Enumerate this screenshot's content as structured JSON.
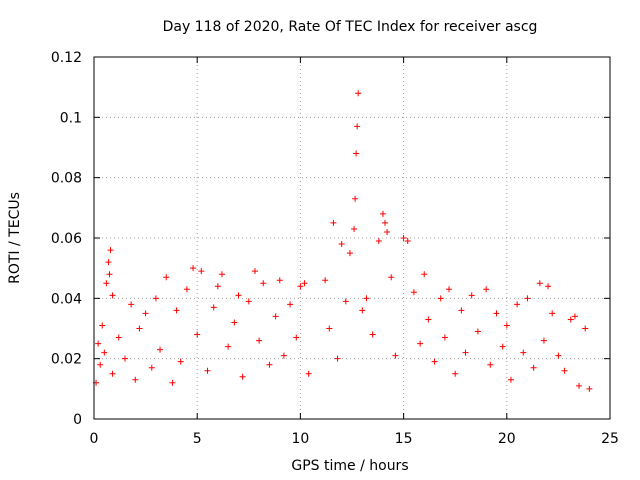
{
  "chart_data": {
    "type": "scatter",
    "title": "Day 118 of 2020, Rate Of TEC Index for receiver ascg",
    "xlabel": "GPS time / hours",
    "ylabel": "ROTI / TECUs",
    "xlim": [
      0,
      25
    ],
    "ylim": [
      0,
      0.12
    ],
    "xticks": [
      "0",
      "5",
      "10",
      "15",
      "20",
      "25"
    ],
    "yticks": [
      "0",
      "0.02",
      "0.04",
      "0.06",
      "0.08",
      "0.1",
      "0.12"
    ],
    "grid": true,
    "marker": "+",
    "color": "#ff0000",
    "series": [
      {
        "name": "ROTI",
        "points": [
          [
            0.1,
            0.012
          ],
          [
            0.2,
            0.025
          ],
          [
            0.3,
            0.018
          ],
          [
            0.4,
            0.031
          ],
          [
            0.5,
            0.022
          ],
          [
            0.6,
            0.045
          ],
          [
            0.7,
            0.052
          ],
          [
            0.75,
            0.048
          ],
          [
            0.8,
            0.056
          ],
          [
            0.9,
            0.041
          ],
          [
            0.9,
            0.015
          ],
          [
            1.2,
            0.027
          ],
          [
            1.5,
            0.02
          ],
          [
            1.8,
            0.038
          ],
          [
            2.0,
            0.013
          ],
          [
            2.2,
            0.03
          ],
          [
            2.5,
            0.035
          ],
          [
            2.8,
            0.017
          ],
          [
            3.0,
            0.04
          ],
          [
            3.2,
            0.023
          ],
          [
            3.5,
            0.047
          ],
          [
            3.8,
            0.012
          ],
          [
            4.0,
            0.036
          ],
          [
            4.2,
            0.019
          ],
          [
            4.5,
            0.043
          ],
          [
            4.8,
            0.05
          ],
          [
            5.0,
            0.028
          ],
          [
            5.2,
            0.049
          ],
          [
            5.5,
            0.016
          ],
          [
            5.8,
            0.037
          ],
          [
            6.0,
            0.044
          ],
          [
            6.2,
            0.048
          ],
          [
            6.5,
            0.024
          ],
          [
            6.8,
            0.032
          ],
          [
            7.0,
            0.041
          ],
          [
            7.2,
            0.014
          ],
          [
            7.5,
            0.039
          ],
          [
            7.8,
            0.049
          ],
          [
            8.0,
            0.026
          ],
          [
            8.2,
            0.045
          ],
          [
            8.5,
            0.018
          ],
          [
            8.8,
            0.034
          ],
          [
            9.0,
            0.046
          ],
          [
            9.2,
            0.021
          ],
          [
            9.5,
            0.038
          ],
          [
            9.8,
            0.027
          ],
          [
            10.0,
            0.044
          ],
          [
            10.2,
            0.045
          ],
          [
            10.4,
            0.015
          ],
          [
            11.2,
            0.046
          ],
          [
            11.4,
            0.03
          ],
          [
            11.6,
            0.065
          ],
          [
            11.8,
            0.02
          ],
          [
            12.0,
            0.058
          ],
          [
            12.2,
            0.039
          ],
          [
            12.4,
            0.055
          ],
          [
            12.6,
            0.063
          ],
          [
            12.65,
            0.073
          ],
          [
            12.7,
            0.088
          ],
          [
            12.75,
            0.097
          ],
          [
            12.8,
            0.108
          ],
          [
            13.0,
            0.036
          ],
          [
            13.2,
            0.04
          ],
          [
            13.5,
            0.028
          ],
          [
            13.8,
            0.059
          ],
          [
            14.0,
            0.068
          ],
          [
            14.1,
            0.065
          ],
          [
            14.2,
            0.062
          ],
          [
            14.4,
            0.047
          ],
          [
            14.6,
            0.021
          ],
          [
            15.0,
            0.06
          ],
          [
            15.2,
            0.059
          ],
          [
            15.5,
            0.042
          ],
          [
            15.8,
            0.025
          ],
          [
            16.0,
            0.048
          ],
          [
            16.2,
            0.033
          ],
          [
            16.5,
            0.019
          ],
          [
            16.8,
            0.04
          ],
          [
            17.0,
            0.027
          ],
          [
            17.2,
            0.043
          ],
          [
            17.5,
            0.015
          ],
          [
            17.8,
            0.036
          ],
          [
            18.0,
            0.022
          ],
          [
            18.3,
            0.041
          ],
          [
            18.6,
            0.029
          ],
          [
            19.0,
            0.043
          ],
          [
            19.2,
            0.018
          ],
          [
            19.5,
            0.035
          ],
          [
            19.8,
            0.024
          ],
          [
            20.0,
            0.031
          ],
          [
            20.2,
            0.013
          ],
          [
            20.5,
            0.038
          ],
          [
            20.8,
            0.022
          ],
          [
            21.0,
            0.04
          ],
          [
            21.3,
            0.017
          ],
          [
            21.6,
            0.045
          ],
          [
            21.8,
            0.026
          ],
          [
            22.0,
            0.044
          ],
          [
            22.2,
            0.035
          ],
          [
            22.5,
            0.021
          ],
          [
            22.8,
            0.016
          ],
          [
            23.1,
            0.033
          ],
          [
            23.3,
            0.034
          ],
          [
            23.5,
            0.011
          ],
          [
            23.8,
            0.03
          ],
          [
            24.0,
            0.01
          ]
        ]
      }
    ]
  }
}
